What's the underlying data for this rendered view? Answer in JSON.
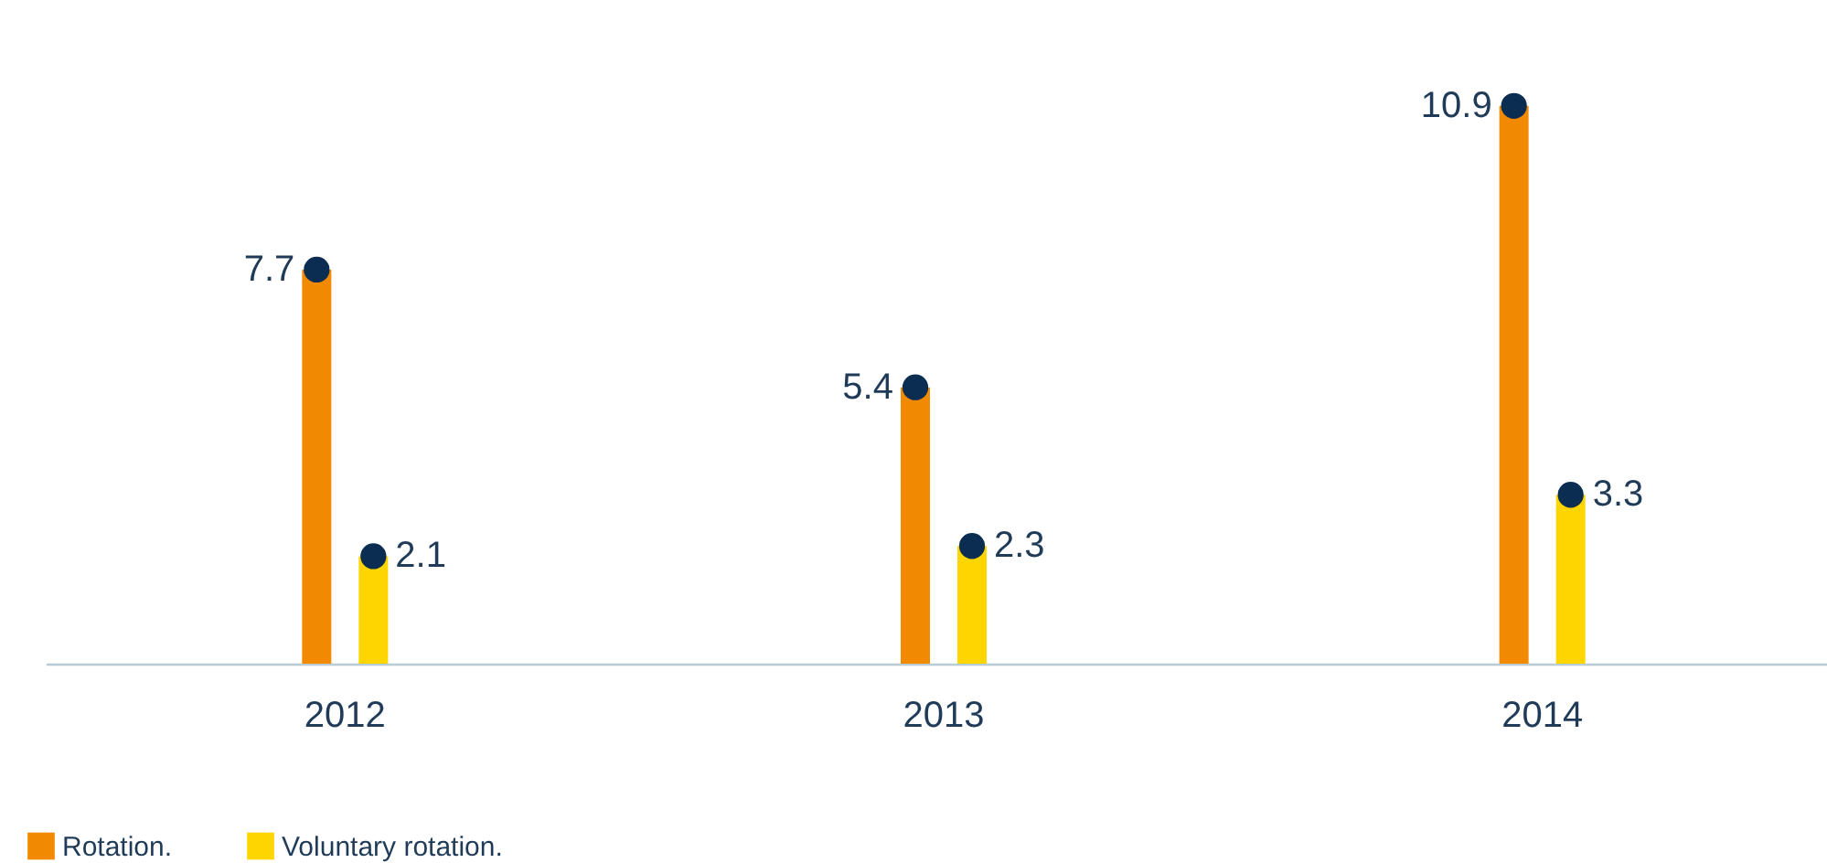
{
  "chart_data": {
    "type": "bar",
    "categories": [
      "2012",
      "2013",
      "2014"
    ],
    "series": [
      {
        "name": "Rotation.",
        "color": "#f18a00",
        "values": [
          7.7,
          5.4,
          10.9
        ]
      },
      {
        "name": "Voluntary rotation.",
        "color": "#ffd500",
        "values": [
          2.1,
          2.3,
          3.3
        ]
      },
      {
        "type": "scatter",
        "color": "#0b2d52",
        "values": [
          7.7,
          5.4,
          10.9
        ],
        "value_labels": [
          "7.7",
          "5.4",
          "10.9"
        ]
      },
      {
        "type": "scatter",
        "color": "#0b2d52",
        "values": [
          2.1,
          2.3,
          3.3
        ],
        "value_labels": [
          "2.1",
          "2.3",
          "3.3"
        ]
      }
    ],
    "marker": "circle",
    "legend": "bottom left",
    "grid": false
  }
}
